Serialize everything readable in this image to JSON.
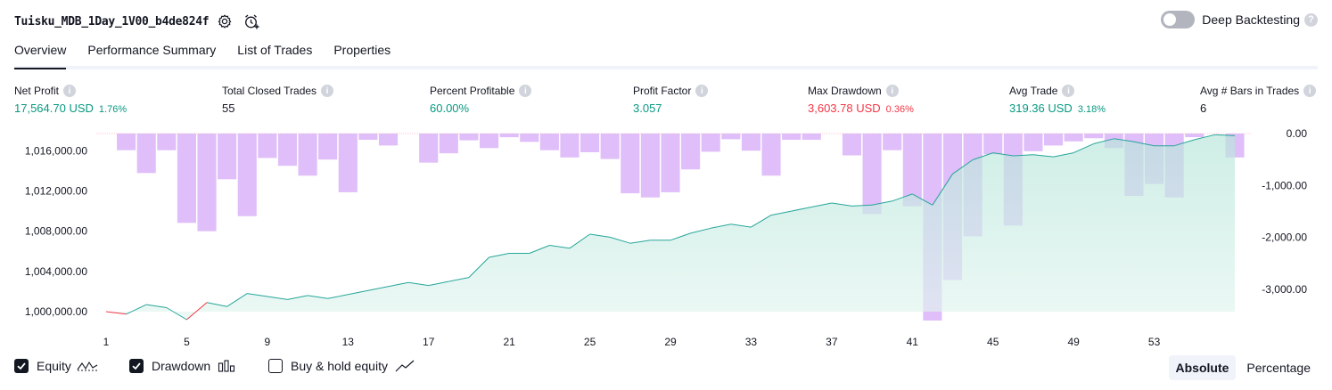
{
  "header": {
    "title": "Tuisku_MDB_1Day_1V00_b4de824f",
    "settings_icon": "gear-icon",
    "alert_icon": "alarm-add-icon",
    "deep_backtesting_label": "Deep Backtesting",
    "deep_backtesting_enabled": false
  },
  "tabs": [
    {
      "label": "Overview",
      "active": true
    },
    {
      "label": "Performance Summary",
      "active": false
    },
    {
      "label": "List of Trades",
      "active": false
    },
    {
      "label": "Properties",
      "active": false
    }
  ],
  "metrics": [
    {
      "label": "Net Profit",
      "value": "17,564.70 USD",
      "pct": "1.76%",
      "color": "#089981"
    },
    {
      "label": "Total Closed Trades",
      "value": "55",
      "pct": "",
      "color": "#131722"
    },
    {
      "label": "Percent Profitable",
      "value": "60.00%",
      "pct": "",
      "color": "#089981"
    },
    {
      "label": "Profit Factor",
      "value": "3.057",
      "pct": "",
      "color": "#089981"
    },
    {
      "label": "Max Drawdown",
      "value": "3,603.78 USD",
      "pct": "0.36%",
      "color": "#f23645"
    },
    {
      "label": "Avg Trade",
      "value": "319.36 USD",
      "pct": "3.18%",
      "color": "#089981"
    },
    {
      "label": "Avg # Bars in Trades",
      "value": "6",
      "pct": "",
      "color": "#131722"
    }
  ],
  "chart_data": {
    "type": "area",
    "x_ticks": [
      "1",
      "5",
      "9",
      "13",
      "17",
      "21",
      "25",
      "29",
      "33",
      "37",
      "41",
      "45",
      "49",
      "53"
    ],
    "y_left_ticks": [
      "1,016,000.00",
      "1,012,000.00",
      "1,008,000.00",
      "1,004,000.00",
      "1,000,000.00"
    ],
    "y_left_values": [
      1016000,
      1012000,
      1008000,
      1004000,
      1000000
    ],
    "y_left_range": [
      999200,
      1017800
    ],
    "y_right_ticks": [
      "0.00",
      "-1,000.00",
      "-2,000.00",
      "-3,000.00"
    ],
    "y_right_values": [
      0,
      -1000,
      -2000,
      -3000
    ],
    "y_right_range": [
      -3650,
      200
    ],
    "trade_range": [
      1,
      57
    ],
    "equity": {
      "x": [
        1,
        2,
        3,
        4,
        5,
        6,
        7,
        8,
        9,
        10,
        11,
        12,
        13,
        14,
        15,
        16,
        17,
        18,
        19,
        20,
        21,
        22,
        23,
        24,
        25,
        26,
        27,
        28,
        29,
        30,
        31,
        32,
        33,
        34,
        35,
        36,
        37,
        38,
        39,
        40,
        41,
        42,
        43,
        44,
        45,
        46,
        47,
        48,
        49,
        50,
        51,
        52,
        53,
        54,
        55,
        56,
        57
      ],
      "values": [
        1000000,
        999750,
        1000700,
        1000400,
        999200,
        1000900,
        1000500,
        1001800,
        1001500,
        1001200,
        1001600,
        1001300,
        1001700,
        1002100,
        1002500,
        1002900,
        1002600,
        1003000,
        1003400,
        1005400,
        1005800,
        1005800,
        1006600,
        1006300,
        1007700,
        1007400,
        1006800,
        1007100,
        1007100,
        1007800,
        1008300,
        1008700,
        1008400,
        1009600,
        1010000,
        1010400,
        1010800,
        1010500,
        1010600,
        1011000,
        1011700,
        1010600,
        1013700,
        1015100,
        1015800,
        1015500,
        1015600,
        1015400,
        1015800,
        1016700,
        1017200,
        1016900,
        1016500,
        1016500,
        1017100,
        1017600,
        1017500
      ]
    },
    "drawdown": {
      "x": [
        1,
        2,
        3,
        4,
        5,
        6,
        7,
        8,
        9,
        10,
        11,
        12,
        13,
        14,
        15,
        16,
        17,
        18,
        19,
        20,
        21,
        22,
        23,
        24,
        25,
        26,
        27,
        28,
        29,
        30,
        31,
        32,
        33,
        34,
        35,
        36,
        37,
        38,
        39,
        40,
        41,
        42,
        43,
        44,
        45,
        46,
        47,
        48,
        49,
        50,
        51,
        52,
        53,
        54,
        55,
        56,
        57
      ],
      "values": [
        0,
        -320,
        -760,
        -320,
        -1720,
        -1880,
        -880,
        -1590,
        -470,
        -620,
        -810,
        -500,
        -1130,
        -120,
        -230,
        0,
        -560,
        -380,
        -130,
        -280,
        -70,
        -160,
        -320,
        -460,
        -360,
        -490,
        -1150,
        -1230,
        -1130,
        -690,
        -350,
        -110,
        -330,
        -810,
        -120,
        -120,
        0,
        -420,
        -1550,
        -320,
        -1400,
        -3600,
        -2820,
        -1980,
        -400,
        -1770,
        -340,
        -230,
        -150,
        -90,
        -280,
        -1200,
        -970,
        -1230,
        -70,
        0,
        -460
      ]
    },
    "series_colors": {
      "equity_line": "#26a69a",
      "equity_loss_line": "#f23645",
      "equity_fill": "#cdeee6",
      "drawdown": "#d9b3f8"
    },
    "legend": [
      {
        "label": "Equity",
        "checked": true,
        "icon": "equity-line-icon"
      },
      {
        "label": "Drawdown",
        "checked": true,
        "icon": "drawdown-bars-icon"
      },
      {
        "label": "Buy & hold equity",
        "checked": false,
        "icon": "buy-hold-line-icon"
      }
    ],
    "grid": false
  },
  "scale_toggle": {
    "options": [
      "Absolute",
      "Percentage"
    ],
    "selected": "Absolute"
  }
}
